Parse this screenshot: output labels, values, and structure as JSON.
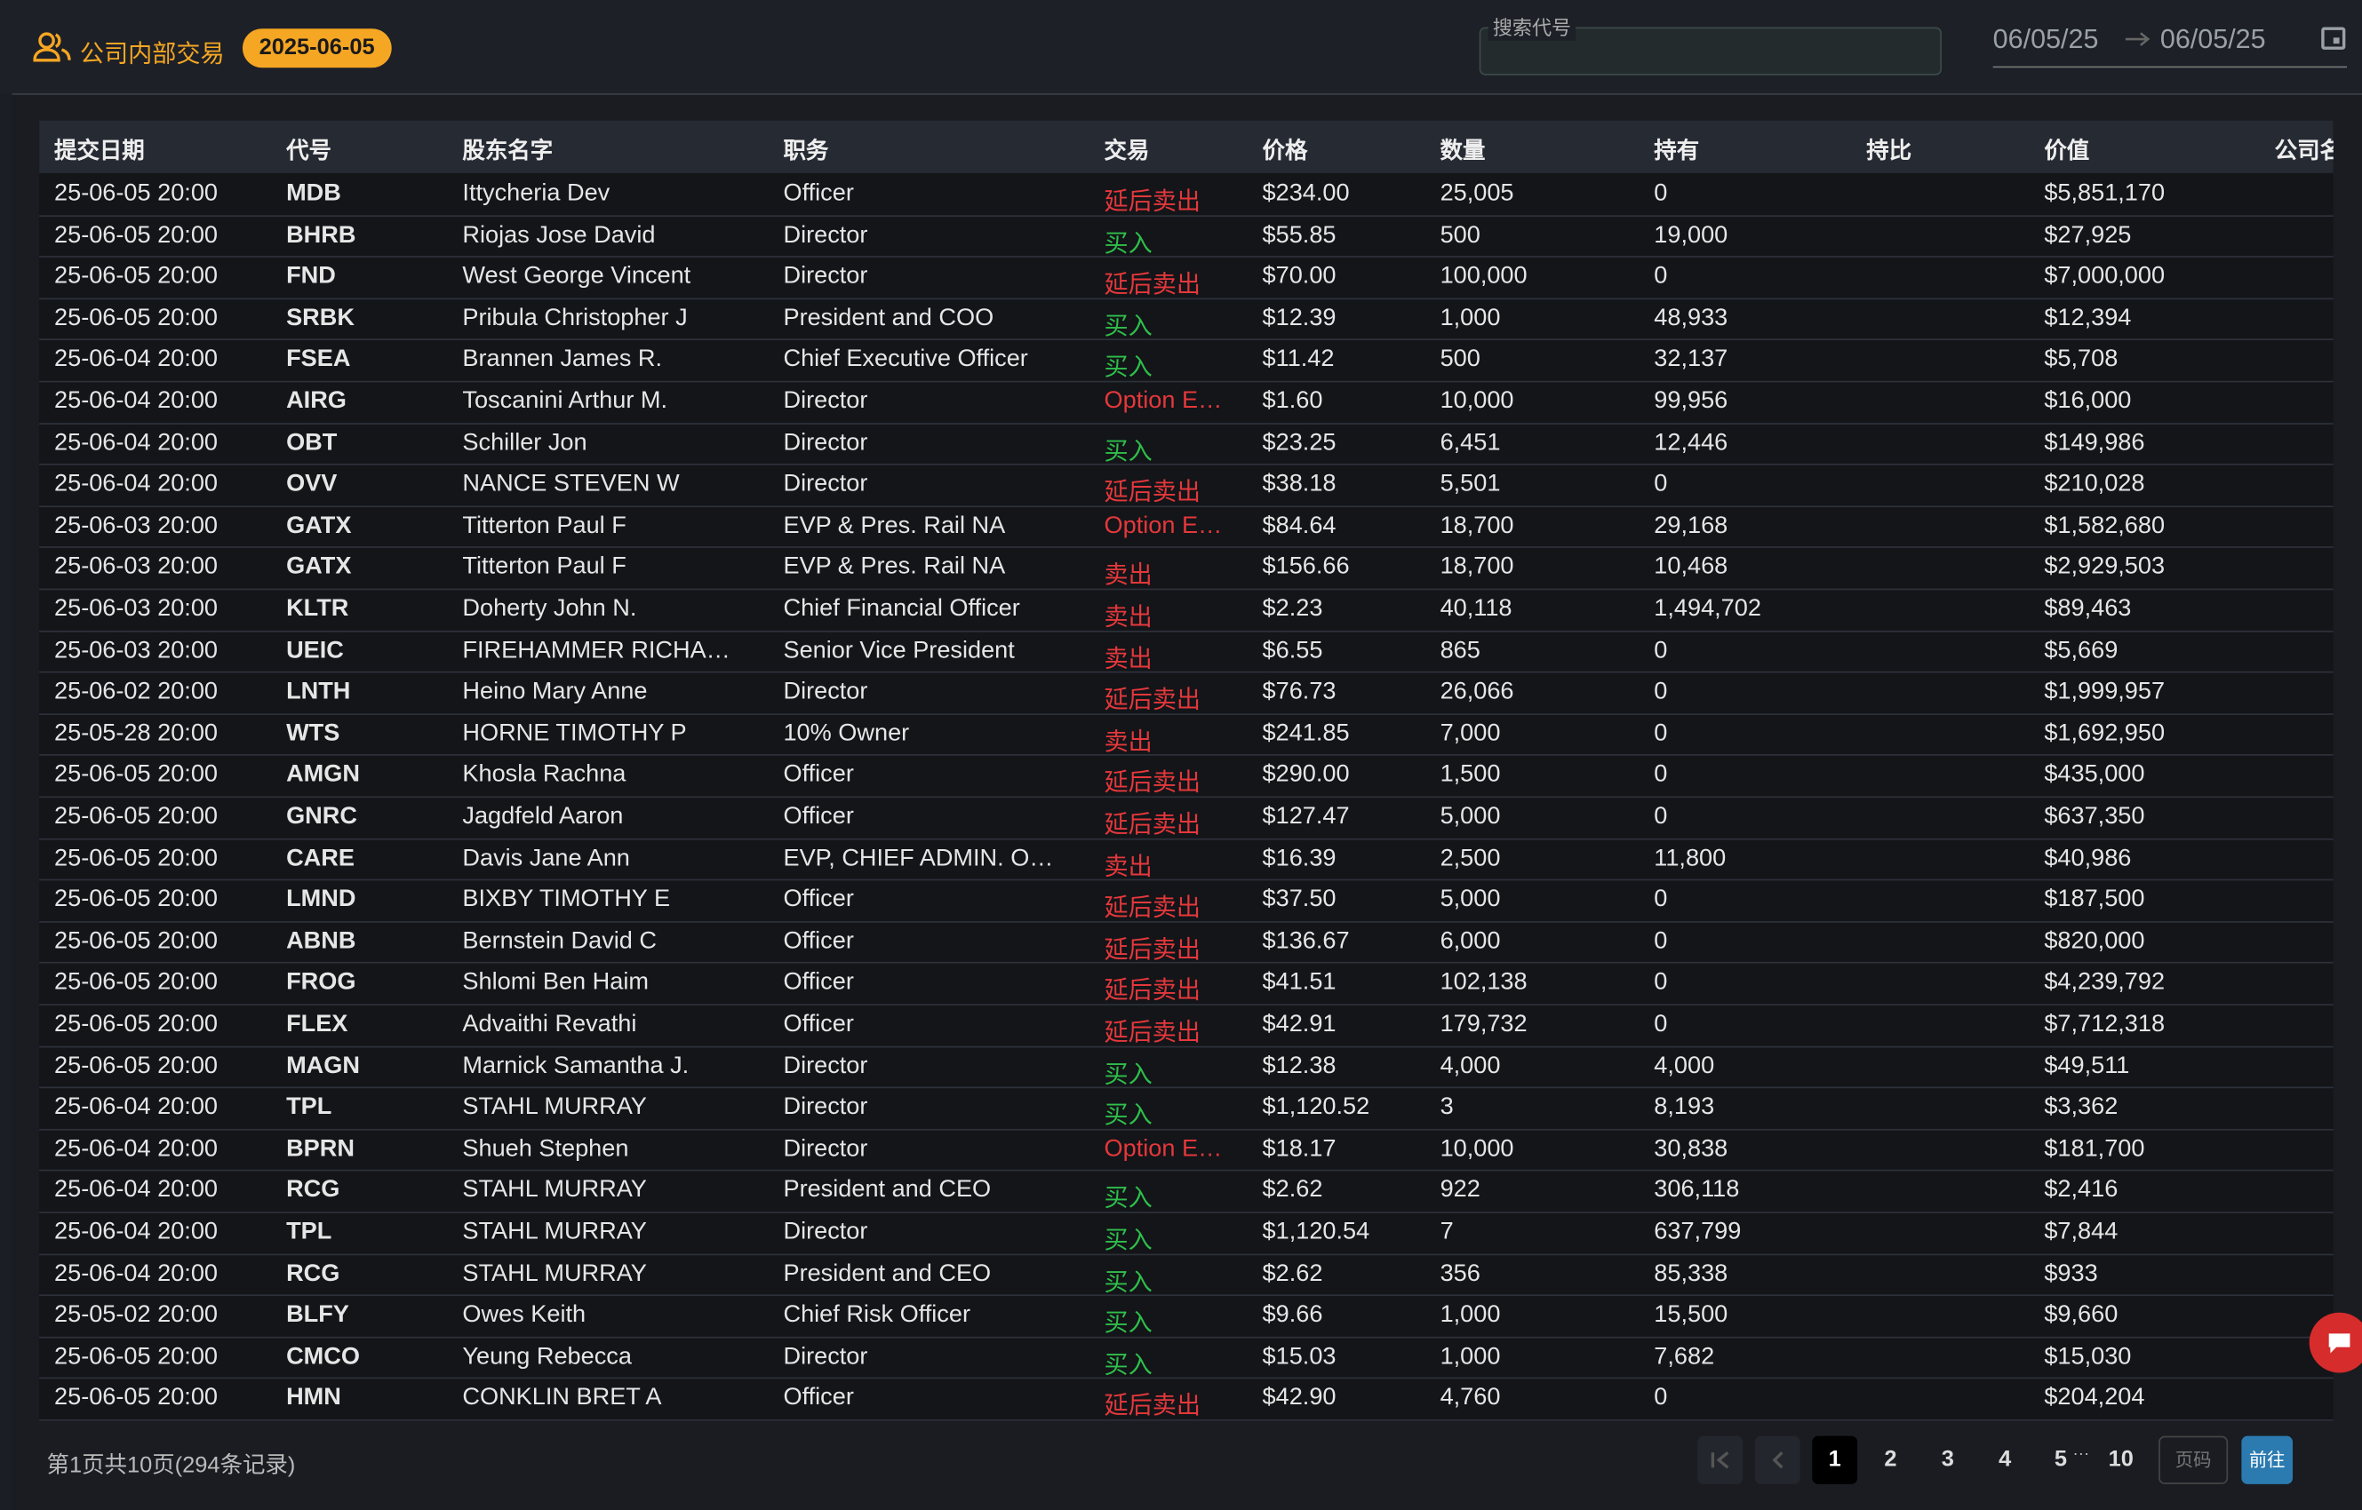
{
  "header": {
    "title": "公司内部交易",
    "badge": "2025-06-05",
    "search_label": "搜索代号",
    "date_range": {
      "start": "06/05/25",
      "end": "06/05/25"
    }
  },
  "table": {
    "columns": [
      "提交日期",
      "代号",
      "股东名字",
      "职务",
      "交易",
      "价格",
      "数量",
      "持有",
      "持比",
      "价值",
      "公司名"
    ],
    "rows": [
      {
        "date": "25-06-05 20:00",
        "ticker": "MDB",
        "name": "Ittycheria Dev",
        "role": "Officer",
        "trade": {
          "text": "延后卖出",
          "color": "#e5383b"
        },
        "price": "$234.00",
        "qty": "25,005",
        "held": "0",
        "value": "$5,851,170"
      },
      {
        "date": "25-06-05 20:00",
        "ticker": "BHRB",
        "name": "Riojas Jose David",
        "role": "Director",
        "trade": {
          "text": "买入",
          "color": "#2fbf4a"
        },
        "price": "$55.85",
        "qty": "500",
        "held": "19,000",
        "value": "$27,925"
      },
      {
        "date": "25-06-05 20:00",
        "ticker": "FND",
        "name": "West George Vincent",
        "role": "Director",
        "trade": {
          "text": "延后卖出",
          "color": "#e5383b"
        },
        "price": "$70.00",
        "qty": "100,000",
        "held": "0",
        "value": "$7,000,000"
      },
      {
        "date": "25-06-05 20:00",
        "ticker": "SRBK",
        "name": "Pribula Christopher J",
        "role": "President and COO",
        "trade": {
          "text": "买入",
          "color": "#2fbf4a"
        },
        "price": "$12.39",
        "qty": "1,000",
        "held": "48,933",
        "value": "$12,394"
      },
      {
        "date": "25-06-04 20:00",
        "ticker": "FSEA",
        "name": "Brannen James R.",
        "role": "Chief Executive Officer",
        "trade": {
          "text": "买入",
          "color": "#2fbf4a"
        },
        "price": "$11.42",
        "qty": "500",
        "held": "32,137",
        "value": "$5,708"
      },
      {
        "date": "25-06-04 20:00",
        "ticker": "AIRG",
        "name": "Toscanini Arthur M.",
        "role": "Director",
        "trade": {
          "text": "Option E…",
          "color": "#e5383b"
        },
        "price": "$1.60",
        "qty": "10,000",
        "held": "99,956",
        "value": "$16,000"
      },
      {
        "date": "25-06-04 20:00",
        "ticker": "OBT",
        "name": "Schiller Jon",
        "role": "Director",
        "trade": {
          "text": "买入",
          "color": "#2fbf4a"
        },
        "price": "$23.25",
        "qty": "6,451",
        "held": "12,446",
        "value": "$149,986"
      },
      {
        "date": "25-06-04 20:00",
        "ticker": "OVV",
        "name": "NANCE STEVEN W",
        "role": "Director",
        "trade": {
          "text": "延后卖出",
          "color": "#e5383b"
        },
        "price": "$38.18",
        "qty": "5,501",
        "held": "0",
        "value": "$210,028"
      },
      {
        "date": "25-06-03 20:00",
        "ticker": "GATX",
        "name": "Titterton Paul F",
        "role": "EVP & Pres. Rail NA",
        "trade": {
          "text": "Option E…",
          "color": "#e5383b"
        },
        "price": "$84.64",
        "qty": "18,700",
        "held": "29,168",
        "value": "$1,582,680"
      },
      {
        "date": "25-06-03 20:00",
        "ticker": "GATX",
        "name": "Titterton Paul F",
        "role": "EVP & Pres. Rail NA",
        "trade": {
          "text": "卖出",
          "color": "#e5383b"
        },
        "price": "$156.66",
        "qty": "18,700",
        "held": "10,468",
        "value": "$2,929,503"
      },
      {
        "date": "25-06-03 20:00",
        "ticker": "KLTR",
        "name": "Doherty John N.",
        "role": "Chief Financial Officer",
        "trade": {
          "text": "卖出",
          "color": "#e5383b"
        },
        "price": "$2.23",
        "qty": "40,118",
        "held": "1,494,702",
        "value": "$89,463"
      },
      {
        "date": "25-06-03 20:00",
        "ticker": "UEIC",
        "name": "FIREHAMMER RICHA…",
        "role": "Senior Vice President",
        "trade": {
          "text": "卖出",
          "color": "#e5383b"
        },
        "price": "$6.55",
        "qty": "865",
        "held": "0",
        "value": "$5,669"
      },
      {
        "date": "25-06-02 20:00",
        "ticker": "LNTH",
        "name": "Heino Mary Anne",
        "role": "Director",
        "trade": {
          "text": "延后卖出",
          "color": "#e5383b"
        },
        "price": "$76.73",
        "qty": "26,066",
        "held": "0",
        "value": "$1,999,957"
      },
      {
        "date": "25-05-28 20:00",
        "ticker": "WTS",
        "name": "HORNE TIMOTHY P",
        "role": "10% Owner",
        "trade": {
          "text": "卖出",
          "color": "#e5383b"
        },
        "price": "$241.85",
        "qty": "7,000",
        "held": "0",
        "value": "$1,692,950"
      },
      {
        "date": "25-06-05 20:00",
        "ticker": "AMGN",
        "name": "Khosla Rachna",
        "role": "Officer",
        "trade": {
          "text": "延后卖出",
          "color": "#e5383b"
        },
        "price": "$290.00",
        "qty": "1,500",
        "held": "0",
        "value": "$435,000"
      },
      {
        "date": "25-06-05 20:00",
        "ticker": "GNRC",
        "name": "Jagdfeld Aaron",
        "role": "Officer",
        "trade": {
          "text": "延后卖出",
          "color": "#e5383b"
        },
        "price": "$127.47",
        "qty": "5,000",
        "held": "0",
        "value": "$637,350"
      },
      {
        "date": "25-06-05 20:00",
        "ticker": "CARE",
        "name": "Davis Jane Ann",
        "role": "EVP, CHIEF ADMIN. O…",
        "trade": {
          "text": "卖出",
          "color": "#e5383b"
        },
        "price": "$16.39",
        "qty": "2,500",
        "held": "11,800",
        "value": "$40,986"
      },
      {
        "date": "25-06-05 20:00",
        "ticker": "LMND",
        "name": "BIXBY TIMOTHY E",
        "role": "Officer",
        "trade": {
          "text": "延后卖出",
          "color": "#e5383b"
        },
        "price": "$37.50",
        "qty": "5,000",
        "held": "0",
        "value": "$187,500"
      },
      {
        "date": "25-06-05 20:00",
        "ticker": "ABNB",
        "name": "Bernstein David C",
        "role": "Officer",
        "trade": {
          "text": "延后卖出",
          "color": "#e5383b"
        },
        "price": "$136.67",
        "qty": "6,000",
        "held": "0",
        "value": "$820,000"
      },
      {
        "date": "25-06-05 20:00",
        "ticker": "FROG",
        "name": "Shlomi Ben Haim",
        "role": "Officer",
        "trade": {
          "text": "延后卖出",
          "color": "#e5383b"
        },
        "price": "$41.51",
        "qty": "102,138",
        "held": "0",
        "value": "$4,239,792"
      },
      {
        "date": "25-06-05 20:00",
        "ticker": "FLEX",
        "name": "Advaithi Revathi",
        "role": "Officer",
        "trade": {
          "text": "延后卖出",
          "color": "#e5383b"
        },
        "price": "$42.91",
        "qty": "179,732",
        "held": "0",
        "value": "$7,712,318"
      },
      {
        "date": "25-06-05 20:00",
        "ticker": "MAGN",
        "name": "Marnick Samantha J.",
        "role": "Director",
        "trade": {
          "text": "买入",
          "color": "#2fbf4a"
        },
        "price": "$12.38",
        "qty": "4,000",
        "held": "4,000",
        "value": "$49,511"
      },
      {
        "date": "25-06-04 20:00",
        "ticker": "TPL",
        "name": "STAHL MURRAY",
        "role": "Director",
        "trade": {
          "text": "买入",
          "color": "#2fbf4a"
        },
        "price": "$1,120.52",
        "qty": "3",
        "held": "8,193",
        "value": "$3,362"
      },
      {
        "date": "25-06-04 20:00",
        "ticker": "BPRN",
        "name": "Shueh Stephen",
        "role": "Director",
        "trade": {
          "text": "Option E…",
          "color": "#e5383b"
        },
        "price": "$18.17",
        "qty": "10,000",
        "held": "30,838",
        "value": "$181,700"
      },
      {
        "date": "25-06-04 20:00",
        "ticker": "RCG",
        "name": "STAHL MURRAY",
        "role": "President and CEO",
        "trade": {
          "text": "买入",
          "color": "#2fbf4a"
        },
        "price": "$2.62",
        "qty": "922",
        "held": "306,118",
        "value": "$2,416"
      },
      {
        "date": "25-06-04 20:00",
        "ticker": "TPL",
        "name": "STAHL MURRAY",
        "role": "Director",
        "trade": {
          "text": "买入",
          "color": "#2fbf4a"
        },
        "price": "$1,120.54",
        "qty": "7",
        "held": "637,799",
        "value": "$7,844"
      },
      {
        "date": "25-06-04 20:00",
        "ticker": "RCG",
        "name": "STAHL MURRAY",
        "role": "President and CEO",
        "trade": {
          "text": "买入",
          "color": "#2fbf4a"
        },
        "price": "$2.62",
        "qty": "356",
        "held": "85,338",
        "value": "$933"
      },
      {
        "date": "25-05-02 20:00",
        "ticker": "BLFY",
        "name": "Owes Keith",
        "role": "Chief Risk Officer",
        "trade": {
          "text": "买入",
          "color": "#2fbf4a"
        },
        "price": "$9.66",
        "qty": "1,000",
        "held": "15,500",
        "value": "$9,660"
      },
      {
        "date": "25-06-05 20:00",
        "ticker": "CMCO",
        "name": "Yeung Rebecca",
        "role": "Director",
        "trade": {
          "text": "买入",
          "color": "#2fbf4a"
        },
        "price": "$15.03",
        "qty": "1,000",
        "held": "7,682",
        "value": "$15,030"
      },
      {
        "date": "25-06-05 20:00",
        "ticker": "HMN",
        "name": "CONKLIN BRET A",
        "role": "Officer",
        "trade": {
          "text": "延后卖出",
          "color": "#e5383b"
        },
        "price": "$42.90",
        "qty": "4,760",
        "held": "0",
        "value": "$204,204"
      }
    ]
  },
  "pagination": {
    "summary": "第1页共10页(294条记录)",
    "pages": [
      "1",
      "2",
      "3",
      "4",
      "5",
      "10"
    ],
    "ellipsis": "···",
    "page_input": "页码",
    "go_button": "前往"
  }
}
